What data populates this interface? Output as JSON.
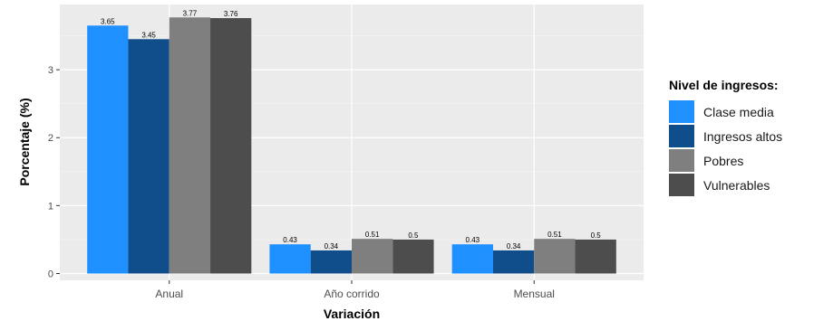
{
  "chart_data": {
    "type": "bar",
    "categories": [
      "Anual",
      "Año corrido",
      "Mensual"
    ],
    "series": [
      {
        "name": "Clase media",
        "color": "#1E90FF",
        "values": [
          3.65,
          0.43,
          0.43
        ],
        "labels": [
          "3.65",
          "0.43",
          "0.43"
        ]
      },
      {
        "name": "Ingresos altos",
        "color": "#104E8B",
        "values": [
          3.45,
          0.34,
          0.34
        ],
        "labels": [
          "3.45",
          "0.34",
          "0.34"
        ]
      },
      {
        "name": "Pobres",
        "color": "#7F7F7F",
        "values": [
          3.77,
          0.51,
          0.51
        ],
        "labels": [
          "3.77",
          "0.51",
          "0.51"
        ]
      },
      {
        "name": "Vulnerables",
        "color": "#4D4D4D",
        "values": [
          3.76,
          0.5,
          0.5
        ],
        "labels": [
          "3.76",
          "0.5",
          "0.5"
        ]
      }
    ],
    "xlabel": "Variación",
    "ylabel": "Porcentaje (%)",
    "ylim": [
      -0.1,
      3.96
    ],
    "yticks": [
      0,
      1,
      2,
      3
    ],
    "grid": true,
    "legend_title": "Nivel de ingresos:",
    "legend_position": "right"
  }
}
